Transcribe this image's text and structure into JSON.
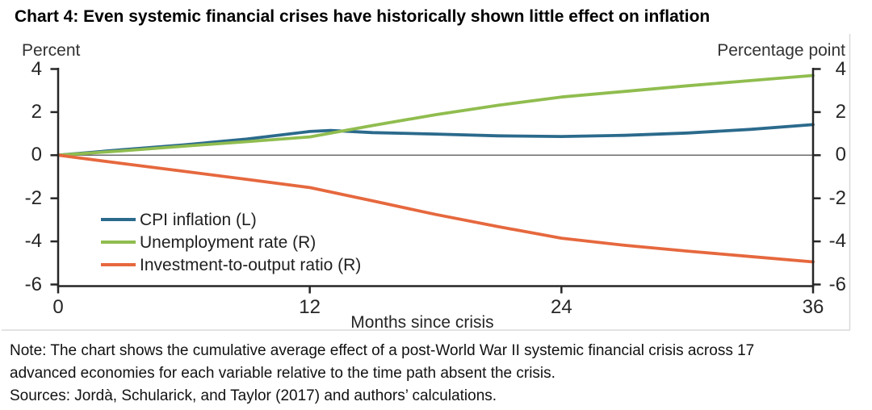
{
  "chart_data": {
    "type": "line",
    "title": "Chart 4: Even systemic financial crises have historically shown little effect on inflation",
    "x_axis": {
      "label": "Months since crisis",
      "range": [
        0,
        36
      ],
      "ticks": [
        0,
        12,
        24,
        36
      ]
    },
    "left_axis": {
      "unit": "Percent",
      "range": [
        -6,
        4
      ],
      "ticks": [
        4,
        2,
        0,
        -2,
        -4,
        -6
      ]
    },
    "right_axis": {
      "unit": "Percentage point",
      "range": [
        -6,
        4
      ],
      "ticks": [
        4,
        2,
        0,
        -2,
        -4,
        -6
      ]
    },
    "zero_line": true,
    "grid": false,
    "legend_position": "inside-lower-left",
    "colors": {
      "frame": "#d9d9d9",
      "axis": "#262626",
      "zero_line": "#6b6b6b"
    },
    "series": [
      {
        "name": "CPI inflation (L)",
        "axis": "left",
        "color": "#2b6a8c",
        "points": [
          [
            0,
            0
          ],
          [
            3,
            0.25
          ],
          [
            6,
            0.48
          ],
          [
            9,
            0.75
          ],
          [
            12,
            1.1
          ],
          [
            13,
            1.15
          ],
          [
            15,
            1.05
          ],
          [
            18,
            0.98
          ],
          [
            21,
            0.9
          ],
          [
            24,
            0.87
          ],
          [
            27,
            0.92
          ],
          [
            30,
            1.03
          ],
          [
            33,
            1.2
          ],
          [
            36,
            1.42
          ]
        ]
      },
      {
        "name": "Unemployment rate (R)",
        "axis": "right",
        "color": "#90bd4f",
        "points": [
          [
            0,
            0
          ],
          [
            3,
            0.2
          ],
          [
            6,
            0.42
          ],
          [
            9,
            0.63
          ],
          [
            12,
            0.85
          ],
          [
            15,
            1.38
          ],
          [
            18,
            1.88
          ],
          [
            21,
            2.32
          ],
          [
            24,
            2.7
          ],
          [
            27,
            2.96
          ],
          [
            30,
            3.22
          ],
          [
            33,
            3.46
          ],
          [
            36,
            3.7
          ]
        ]
      },
      {
        "name": "Investment-to-output ratio (R)",
        "axis": "right",
        "color": "#e6683e",
        "points": [
          [
            0,
            0
          ],
          [
            3,
            -0.38
          ],
          [
            6,
            -0.75
          ],
          [
            9,
            -1.12
          ],
          [
            12,
            -1.5
          ],
          [
            15,
            -2.12
          ],
          [
            18,
            -2.75
          ],
          [
            21,
            -3.32
          ],
          [
            24,
            -3.85
          ],
          [
            27,
            -4.18
          ],
          [
            30,
            -4.45
          ],
          [
            33,
            -4.7
          ],
          [
            36,
            -4.95
          ]
        ]
      }
    ]
  },
  "note": {
    "line1": "Note: The chart shows the cumulative average effect of a post-World War II systemic financial crisis across 17",
    "line2": "advanced economies for each variable relative to the time path absent the crisis.",
    "sources": "Sources: Jordà, Schularick, and Taylor (2017) and authors’ calculations."
  }
}
